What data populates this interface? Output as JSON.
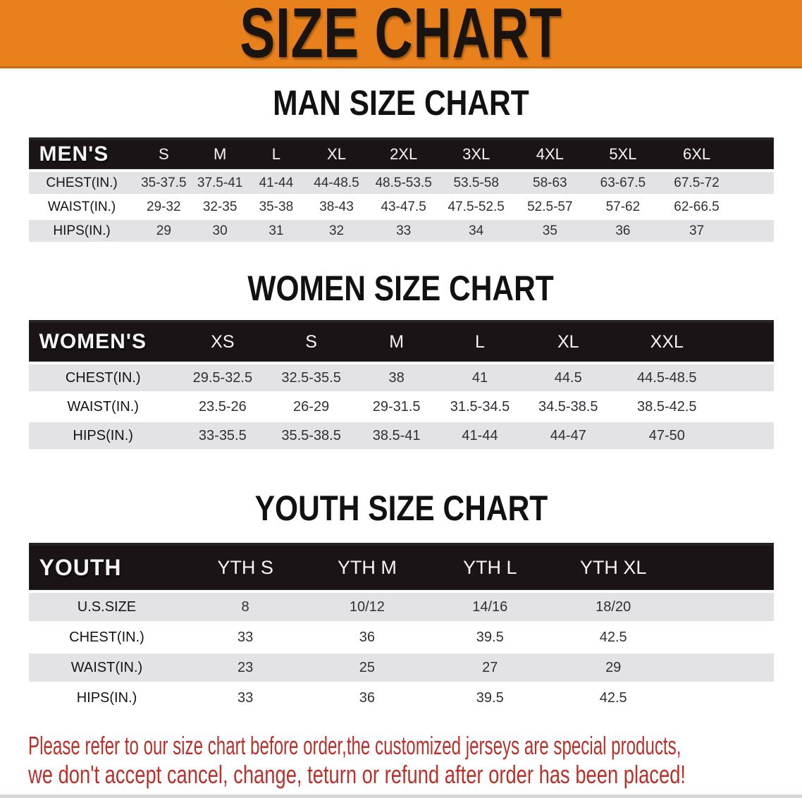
{
  "banner": {
    "title": "SIZE CHART"
  },
  "sections": [
    {
      "heading": "MAN SIZE CHART",
      "table": {
        "label": "MEN'S",
        "columns": [
          "S",
          "M",
          "L",
          "XL",
          "2XL",
          "3XL",
          "4XL",
          "5XL",
          "6XL"
        ],
        "rows": [
          {
            "label": "CHEST(IN.)",
            "values": [
              "35-37.5",
              "37.5-41",
              "41-44",
              "44-48.5",
              "48.5-53.5",
              "53.5-58",
              "58-63",
              "63-67.5",
              "67.5-72"
            ]
          },
          {
            "label": "WAIST(IN.)",
            "values": [
              "29-32",
              "32-35",
              "35-38",
              "38-43",
              "43-47.5",
              "47.5-52.5",
              "52.5-57",
              "57-62",
              "62-66.5"
            ]
          },
          {
            "label": "HIPS(IN.)",
            "values": [
              "29",
              "30",
              "31",
              "32",
              "33",
              "34",
              "35",
              "36",
              "37"
            ]
          }
        ]
      }
    },
    {
      "heading": "WOMEN SIZE CHART",
      "table": {
        "label": "WOMEN'S",
        "columns": [
          "XS",
          "S",
          "M",
          "L",
          "XL",
          "XXL"
        ],
        "rows": [
          {
            "label": "CHEST(IN.)",
            "values": [
              "29.5-32.5",
              "32.5-35.5",
              "38",
              "41",
              "44.5",
              "44.5-48.5"
            ]
          },
          {
            "label": "WAIST(IN.)",
            "values": [
              "23.5-26",
              "26-29",
              "29-31.5",
              "31.5-34.5",
              "34.5-38.5",
              "38.5-42.5"
            ]
          },
          {
            "label": "HIPS(IN.)",
            "values": [
              "33-35.5",
              "35.5-38.5",
              "38.5-41",
              "41-44",
              "44-47",
              "47-50"
            ]
          }
        ]
      }
    },
    {
      "heading": "YOUTH SIZE CHART",
      "table": {
        "label": "YOUTH",
        "columns": [
          "YTH S",
          "YTH M",
          "YTH L",
          "YTH XL"
        ],
        "rows": [
          {
            "label": "U.S.SIZE",
            "values": [
              "8",
              "10/12",
              "14/16",
              "18/20"
            ]
          },
          {
            "label": "CHEST(IN.)",
            "values": [
              "33",
              "36",
              "39.5",
              "42.5"
            ]
          },
          {
            "label": "WAIST(IN.)",
            "values": [
              "23",
              "25",
              "27",
              "29"
            ]
          },
          {
            "label": "HIPS(IN.)",
            "values": [
              "33",
              "36",
              "39.5",
              "42.5"
            ]
          }
        ]
      }
    }
  ],
  "disclaimer": {
    "line1": "Please refer to our size chart before order,the customized jerseys are special products,",
    "line2": "we don't accept cancel, change, teturn or refund after order has been placed!"
  },
  "colors": {
    "banner_bg": "#E8811C",
    "banner_border": "#C96A10",
    "banner_text": "#1A1410",
    "table_header_bg": "#1A1416",
    "table_header_text": "#F5F5F5",
    "row_stripe": "#E3E3E5",
    "row_plain": "#FFFFFF",
    "heading_text": "#111111",
    "value_text": "#2E3036",
    "disclaimer_red": "#B8312A"
  }
}
